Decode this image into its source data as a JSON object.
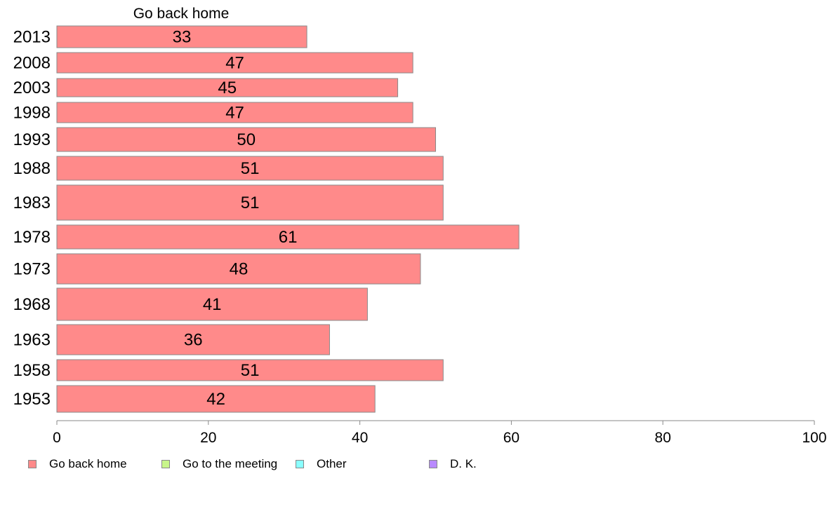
{
  "chart_data": {
    "type": "bar",
    "orientation": "horizontal",
    "title": "Go back home",
    "categories": [
      "2013",
      "2008",
      "2003",
      "1998",
      "1993",
      "1988",
      "1983",
      "1978",
      "1973",
      "1968",
      "1963",
      "1958",
      "1953"
    ],
    "series": [
      {
        "name": "Go back home",
        "color": "#ff8a8a",
        "values": [
          33,
          47,
          45,
          47,
          50,
          51,
          51,
          61,
          48,
          41,
          36,
          51,
          42
        ]
      }
    ],
    "data_labels": [
      "33",
      "47",
      "45",
      "47",
      "50",
      "51",
      "51",
      "61",
      "48",
      "41",
      "36",
      "51",
      "42"
    ],
    "xlim": [
      0,
      100
    ],
    "x_ticks": [
      "0",
      "20",
      "40",
      "60",
      "80",
      "100"
    ],
    "grid": false,
    "legend_position": "bottom",
    "legend": [
      {
        "label": "Go back home",
        "color": "#ff8a8a"
      },
      {
        "label": "Go to the meeting",
        "color": "#c8f58a"
      },
      {
        "label": "Other",
        "color": "#8affff"
      },
      {
        "label": "D. K.",
        "color": "#b98aff"
      }
    ]
  }
}
